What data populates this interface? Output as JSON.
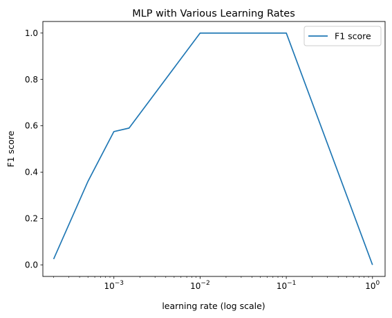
{
  "chart_data": {
    "type": "line",
    "title": "MLP with Various Learning Rates",
    "xlabel": "learning rate (log scale)",
    "ylabel": "F1 score",
    "xscale": "log",
    "xlim": [
      0.00015,
      1.4
    ],
    "ylim": [
      -0.05,
      1.05
    ],
    "x_ticks": [
      {
        "value": 0.001,
        "base": "10",
        "exp": "−3"
      },
      {
        "value": 0.01,
        "base": "10",
        "exp": "−2"
      },
      {
        "value": 0.1,
        "base": "10",
        "exp": "−1"
      },
      {
        "value": 1,
        "base": "10",
        "exp": "0"
      }
    ],
    "y_ticks": [
      {
        "value": 0.0,
        "label": "0.0"
      },
      {
        "value": 0.2,
        "label": "0.2"
      },
      {
        "value": 0.4,
        "label": "0.4"
      },
      {
        "value": 0.6,
        "label": "0.6"
      },
      {
        "value": 0.8,
        "label": "0.8"
      },
      {
        "value": 1.0,
        "label": "1.0"
      }
    ],
    "grid": false,
    "legend_position": "top-right",
    "series": [
      {
        "name": "F1 score",
        "color": "#1f77b4",
        "x": [
          0.0002,
          0.0005,
          0.001,
          0.0015,
          0.01,
          0.1,
          1
        ],
        "y": [
          0.025,
          0.36,
          0.575,
          0.59,
          1.0,
          1.0,
          0.0
        ]
      }
    ]
  }
}
